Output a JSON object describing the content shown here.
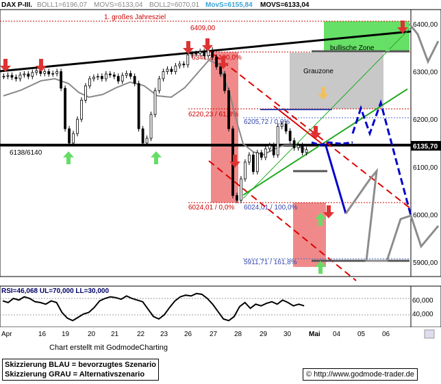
{
  "header": {
    "symbol": "DAX P-III.",
    "boll1": "BOLL1=6196,07",
    "movs1": "MOVS=6133,04",
    "boll2": "BOLL2=6070,01",
    "movs2": "MovS=6155,84",
    "movs3": "MOVS=6133,04"
  },
  "chart_data": [
    {
      "type": "candlestick",
      "title": "",
      "y_ticks": [
        5900,
        6000,
        6100,
        6200,
        6300,
        6400
      ],
      "y_tick_labels": [
        "5900,00",
        "6000,00",
        "6100,00",
        "6200,00",
        "6300,00",
        "6400,00"
      ],
      "ylim": [
        5870,
        6430
      ],
      "x_tick_labels": [
        "Apr",
        "16",
        "19",
        "20",
        "21",
        "22",
        "23",
        "26",
        "27",
        "28",
        "29",
        "30",
        "Mai",
        "04",
        "05",
        "06"
      ],
      "current_price_label": "6135,70",
      "annotations": {
        "goal": "1. großes Jahresziel",
        "goal_level": "6409,00",
        "level_6341": "6341,2 / 100,0%",
        "level_6220": "6220,23 / 61,8%",
        "level_6205": "6205,72 / 0,0%",
        "support": "6138/6140",
        "level_6024a": "6024,01 / 0,0%",
        "level_6024b": "6024,01 / 100,0%",
        "level_5911": "5911,71 / 161,8%",
        "grauzone": "Grauzone",
        "bullish": "bullische Zone"
      },
      "series": [
        {
          "name": "",
          "values": [
            6290,
            6292,
            6288,
            6285,
            6293,
            6295,
            6290,
            6298,
            6302,
            6296,
            6300,
            6295,
            6296,
            6300,
            6265,
            6180,
            6150,
            6170,
            6200,
            6240,
            6270,
            6285,
            6288,
            6290,
            6285,
            6295,
            6293,
            6290,
            6280,
            6292,
            6296,
            6290,
            6275,
            6180,
            6150,
            6160,
            6210,
            6260,
            6285,
            6300,
            6305,
            6300,
            6312,
            6316,
            6314,
            6335,
            6337,
            6338,
            6342,
            6333,
            6345,
            6330,
            6310,
            6295,
            6260,
            6180,
            6040,
            6030,
            6075,
            6110,
            6125,
            6090,
            6130,
            6120,
            6138,
            6145,
            6125,
            6185,
            6190,
            6175,
            6155,
            6140,
            6145,
            6130,
            6136
          ]
        }
      ]
    },
    {
      "type": "line",
      "title": "RSI=46,068 UL=70,000 LL=30,000",
      "y_tick_labels": [
        "60,000",
        "40,000"
      ],
      "ylim": [
        20,
        70
      ],
      "series": [
        {
          "name": "RSI",
          "values": [
            52,
            50,
            55,
            53,
            57,
            55,
            51,
            50,
            48,
            52,
            50,
            38,
            31,
            28,
            32,
            36,
            38,
            44,
            52,
            55,
            57,
            56,
            54,
            58,
            55,
            53,
            51,
            42,
            33,
            30,
            35,
            44,
            52,
            57,
            59,
            58,
            61,
            60,
            55,
            48,
            39,
            30,
            28,
            33,
            45,
            50,
            43,
            48,
            46,
            49,
            51,
            48,
            53,
            50,
            46,
            48,
            46
          ]
        }
      ]
    }
  ],
  "footer": {
    "credit": "Chart erstellt mit GodmodeCharting",
    "legend_blue": "Skizzierung BLAU = bevorzugtes Szenario",
    "legend_grey": "Skizzierung GRAU = Alternativszenario",
    "url": "© http://www.godmode-trader.de"
  },
  "colors": {
    "bullish_zone": "#66e066",
    "grey_zone": "#c8c8c8",
    "red_zone": "#f08a8a",
    "blue_scenario": "#0000cc",
    "grey_scenario": "#8c8c8c",
    "price_label_bg": "#000000",
    "goal_red": "#cc0000"
  }
}
